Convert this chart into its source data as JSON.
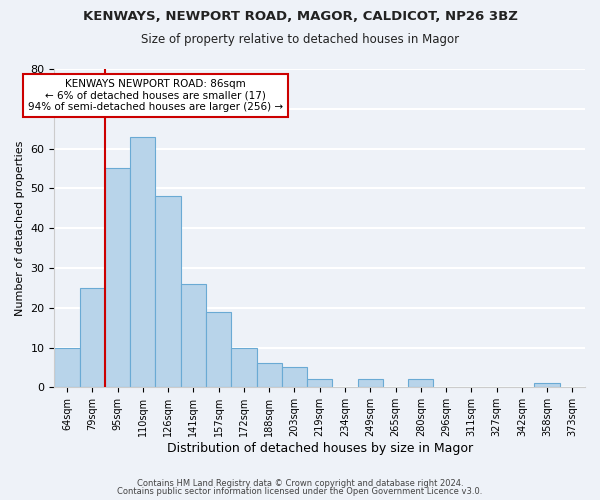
{
  "title": "KENWAYS, NEWPORT ROAD, MAGOR, CALDICOT, NP26 3BZ",
  "subtitle": "Size of property relative to detached houses in Magor",
  "xlabel": "Distribution of detached houses by size in Magor",
  "ylabel": "Number of detached properties",
  "bins": [
    "64sqm",
    "79sqm",
    "95sqm",
    "110sqm",
    "126sqm",
    "141sqm",
    "157sqm",
    "172sqm",
    "188sqm",
    "203sqm",
    "219sqm",
    "234sqm",
    "249sqm",
    "265sqm",
    "280sqm",
    "296sqm",
    "311sqm",
    "327sqm",
    "342sqm",
    "358sqm",
    "373sqm"
  ],
  "values": [
    10,
    25,
    55,
    63,
    48,
    26,
    19,
    10,
    6,
    5,
    2,
    0,
    2,
    0,
    2,
    0,
    0,
    0,
    0,
    1,
    0
  ],
  "bar_color": "#b8d4ea",
  "bar_edge_color": "#6aaad4",
  "annotation_text_line1": "KENWAYS NEWPORT ROAD: 86sqm",
  "annotation_text_line2": "← 6% of detached houses are smaller (17)",
  "annotation_text_line3": "94% of semi-detached houses are larger (256) →",
  "vline_color": "#cc0000",
  "annotation_box_color": "#ffffff",
  "annotation_box_edge_color": "#cc0000",
  "ylim": [
    0,
    80
  ],
  "yticks": [
    0,
    10,
    20,
    30,
    40,
    50,
    60,
    70,
    80
  ],
  "footer1": "Contains HM Land Registry data © Crown copyright and database right 2024.",
  "footer2": "Contains public sector information licensed under the Open Government Licence v3.0.",
  "bg_color": "#eef2f8",
  "grid_color": "#ffffff",
  "vline_x": 1.5
}
